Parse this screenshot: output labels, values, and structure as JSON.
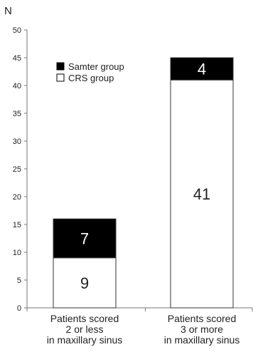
{
  "chart_data": {
    "type": "bar",
    "stacked": true,
    "title": "",
    "xlabel": "",
    "ylabel": "N",
    "ylim": [
      0,
      50
    ],
    "yticks": [
      0,
      5,
      10,
      15,
      20,
      25,
      30,
      35,
      40,
      45,
      50
    ],
    "grid": false,
    "legend_position": "top-left",
    "categories": [
      [
        "Patients scored",
        "2 or less",
        "in maxillary sinus"
      ],
      [
        "Patients scored",
        "3 or more",
        "in maxillary sinus"
      ]
    ],
    "series": [
      {
        "name": "CRS group",
        "color": "#ffffff",
        "values": [
          9,
          41
        ]
      },
      {
        "name": "Samter group",
        "color": "#000000",
        "values": [
          7,
          4
        ]
      }
    ],
    "legend_order": [
      "Samter group",
      "CRS group"
    ]
  }
}
